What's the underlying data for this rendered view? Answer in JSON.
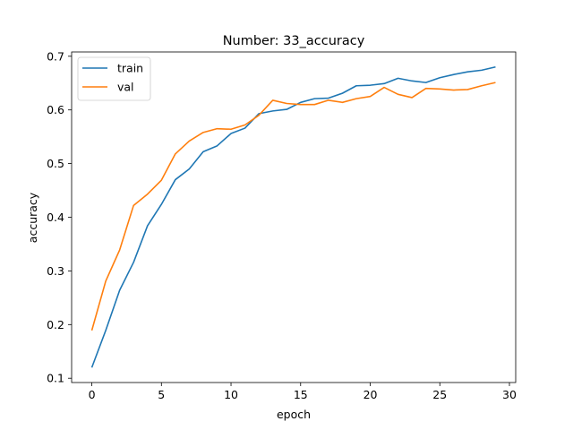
{
  "chart_data": {
    "type": "line",
    "title": "Number: 33_accuracy",
    "xlabel": "epoch",
    "ylabel": "accuracy",
    "xlim": [
      -1.45,
      30.45
    ],
    "ylim": [
      0.092,
      0.708
    ],
    "xticks": [
      0,
      5,
      10,
      15,
      20,
      25,
      30
    ],
    "yticks": [
      0.1,
      0.2,
      0.3,
      0.4,
      0.5,
      0.6,
      0.7
    ],
    "grid": false,
    "legend_position": "top-left",
    "x": [
      0,
      1,
      2,
      3,
      4,
      5,
      6,
      7,
      8,
      9,
      10,
      11,
      12,
      13,
      14,
      15,
      16,
      17,
      18,
      19,
      20,
      21,
      22,
      23,
      24,
      25,
      26,
      27,
      28,
      29
    ],
    "series": [
      {
        "name": "train",
        "color": "#1f77b4",
        "values": [
          0.12,
          0.189,
          0.264,
          0.316,
          0.384,
          0.424,
          0.47,
          0.49,
          0.522,
          0.533,
          0.556,
          0.566,
          0.593,
          0.598,
          0.601,
          0.614,
          0.621,
          0.622,
          0.631,
          0.645,
          0.646,
          0.649,
          0.659,
          0.654,
          0.651,
          0.66,
          0.666,
          0.671,
          0.674,
          0.68
        ]
      },
      {
        "name": "val",
        "color": "#ff7f0e",
        "values": [
          0.189,
          0.281,
          0.339,
          0.422,
          0.443,
          0.469,
          0.518,
          0.542,
          0.558,
          0.565,
          0.564,
          0.572,
          0.59,
          0.618,
          0.612,
          0.61,
          0.61,
          0.618,
          0.614,
          0.621,
          0.625,
          0.642,
          0.629,
          0.623,
          0.64,
          0.639,
          0.637,
          0.638,
          0.645,
          0.651
        ]
      }
    ]
  }
}
